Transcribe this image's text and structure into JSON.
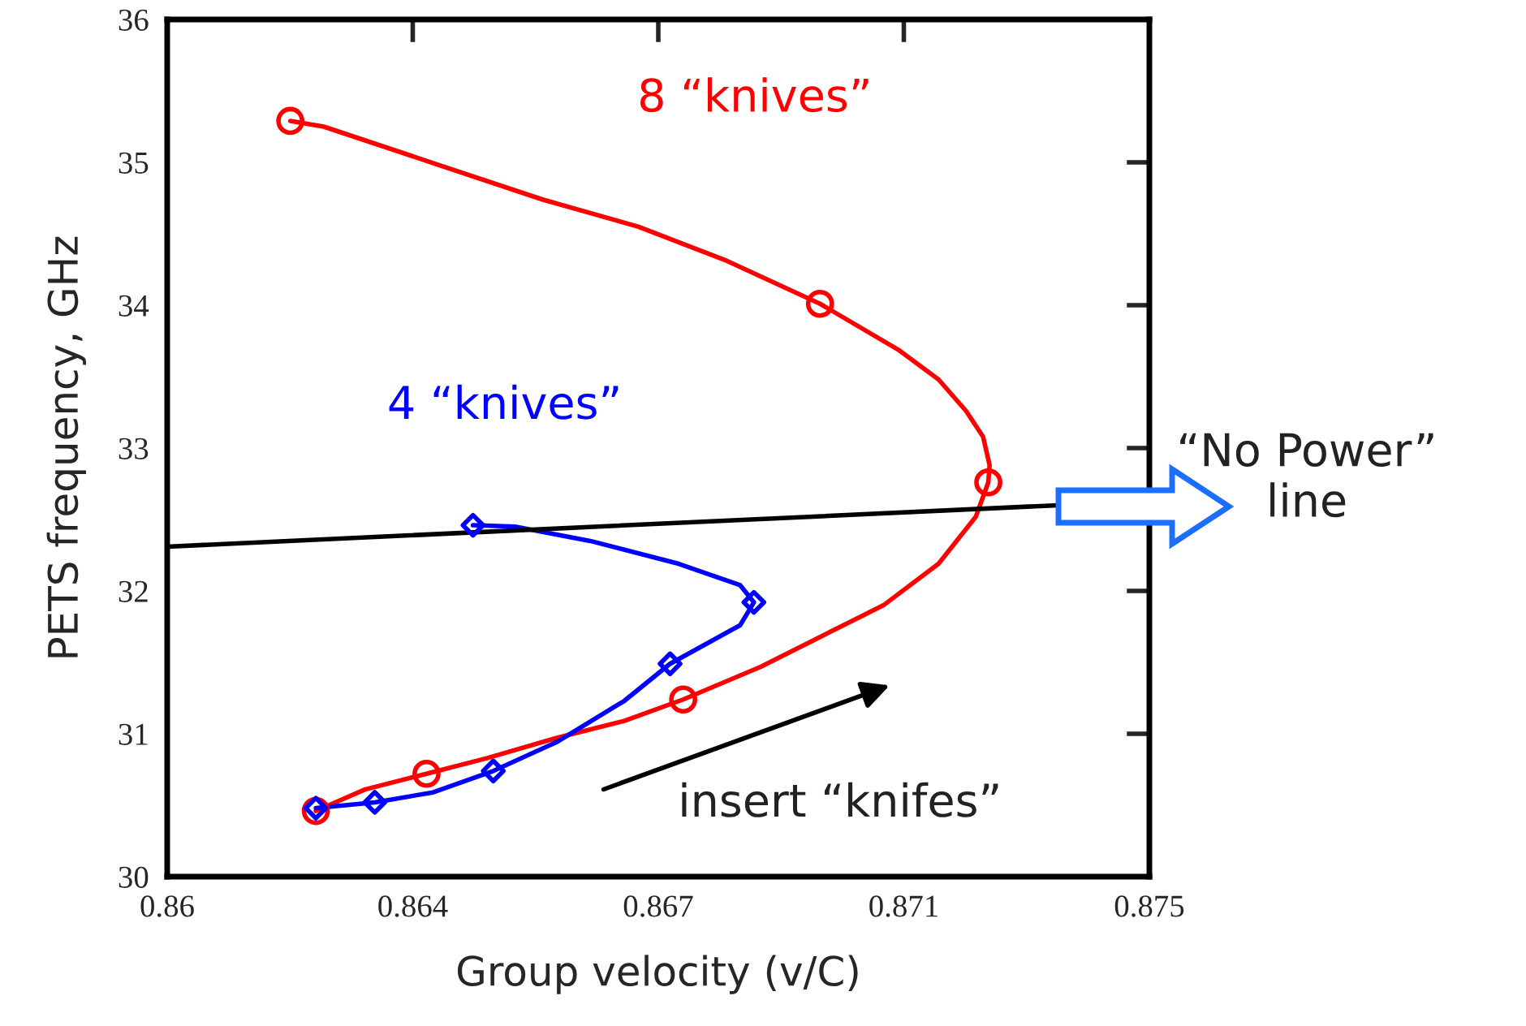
{
  "chart_data": {
    "type": "line",
    "xlabel": "Group velocity (v/C)",
    "ylabel": "PETS frequency, GHz",
    "xlim": [
      0.86,
      0.875
    ],
    "ylim": [
      30,
      36
    ],
    "xticks": [
      {
        "value": 0.86,
        "label": "0.86"
      },
      {
        "value": 0.86375,
        "label": "0.864"
      },
      {
        "value": 0.8675,
        "label": "0.867"
      },
      {
        "value": 0.87125,
        "label": "0.871"
      },
      {
        "value": 0.875,
        "label": "0.875"
      }
    ],
    "yticks": [
      30,
      31,
      32,
      33,
      34,
      35,
      36
    ],
    "tick_labels": "xy",
    "grid": false,
    "legend": false,
    "line_style": "solid",
    "series": [
      {
        "name": "8 “knives”",
        "color": "#ff0000",
        "marker": "none",
        "x": [
          0.86227,
          0.86302,
          0.86396,
          0.86489,
          0.86594,
          0.86698,
          0.86788,
          0.86907,
          0.87011,
          0.87094,
          0.87178,
          0.87235,
          0.87254,
          0.87256,
          0.87246,
          0.8722,
          0.87178,
          0.87116,
          0.86997,
          0.86855,
          0.86719,
          0.86573,
          0.86416,
          0.86239,
          0.86188
        ],
        "values": [
          30.46,
          30.61,
          30.72,
          30.83,
          30.97,
          31.09,
          31.24,
          31.47,
          31.71,
          31.9,
          32.19,
          32.52,
          32.76,
          32.88,
          33.08,
          33.26,
          33.48,
          33.69,
          34.01,
          34.31,
          34.55,
          34.74,
          34.98,
          35.25,
          35.29
        ]
      },
      {
        "type": "scatter",
        "color": "#ff0000",
        "marker": "circle",
        "x": [
          0.86227,
          0.86396,
          0.86788,
          0.87254,
          0.86997,
          0.86188
        ],
        "values": [
          30.46,
          30.72,
          31.24,
          32.76,
          34.01,
          35.29
        ]
      },
      {
        "name": "4 “knives”",
        "color": "#0000ff",
        "marker": "none",
        "x": [
          0.86227,
          0.86317,
          0.86406,
          0.86498,
          0.86594,
          0.86698,
          0.86768,
          0.86875,
          0.86896,
          0.86875,
          0.86781,
          0.86646,
          0.86531,
          0.86467
        ],
        "values": [
          30.48,
          30.52,
          30.59,
          30.74,
          30.94,
          31.23,
          31.49,
          31.76,
          31.92,
          32.04,
          32.19,
          32.35,
          32.45,
          32.46
        ]
      },
      {
        "type": "scatter",
        "color": "#0000ff",
        "marker": "diamond",
        "x": [
          0.86227,
          0.86317,
          0.86498,
          0.86768,
          0.86896,
          0.86467
        ],
        "values": [
          30.48,
          30.52,
          30.74,
          31.49,
          31.92,
          32.46
        ]
      },
      {
        "color": "#000000",
        "marker": "none",
        "x": [
          0.86,
          0.87361
        ],
        "values": [
          32.31,
          32.6
        ]
      }
    ],
    "annotations": [
      "insert “knifes”",
      "“No Power”\nline"
    ]
  }
}
